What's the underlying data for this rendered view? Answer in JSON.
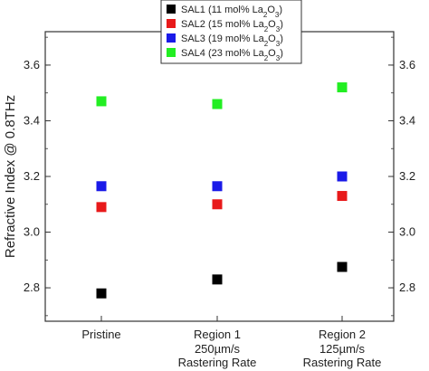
{
  "chart_data": {
    "type": "scatter",
    "ylabel": "Refractive Index @ 0.8THz",
    "ylim": [
      2.68,
      3.72
    ],
    "yticks": [
      2.8,
      3.0,
      3.2,
      3.4,
      3.6
    ],
    "ytick_labels": [
      "2.8",
      "3.0",
      "3.2",
      "3.4",
      "3.6"
    ],
    "categories": [
      {
        "label": "Pristine",
        "sub1": "",
        "sub2": ""
      },
      {
        "label": "Region 1",
        "sub1": "250µm/s",
        "sub2": "Rastering Rate"
      },
      {
        "label": "Region 2",
        "sub1": "125µm/s",
        "sub2": "Rastering Rate"
      }
    ],
    "series": [
      {
        "name": "SAL1 (11 mol% La",
        "sub": "2",
        "tail": "O",
        "sub2": "3",
        "close": ")",
        "color": "#000000",
        "values": [
          2.78,
          2.83,
          2.875
        ]
      },
      {
        "name": "SAL2 (15 mol% La",
        "sub": "2",
        "tail": "O",
        "sub2": "3",
        "close": ")",
        "color": "#e8191a",
        "values": [
          3.09,
          3.1,
          3.13
        ]
      },
      {
        "name": "SAL3 (19 mol% La",
        "sub": "2",
        "tail": "O",
        "sub2": "3",
        "close": ")",
        "color": "#1a1ae8",
        "values": [
          3.165,
          3.165,
          3.2
        ]
      },
      {
        "name": "SAL4 (23 mol% La",
        "sub": "2",
        "tail": "O",
        "sub2": "3",
        "close": ")",
        "color": "#22ee22",
        "values": [
          3.47,
          3.46,
          3.52
        ]
      }
    ],
    "legend_placement": "top-center",
    "grid": false
  }
}
